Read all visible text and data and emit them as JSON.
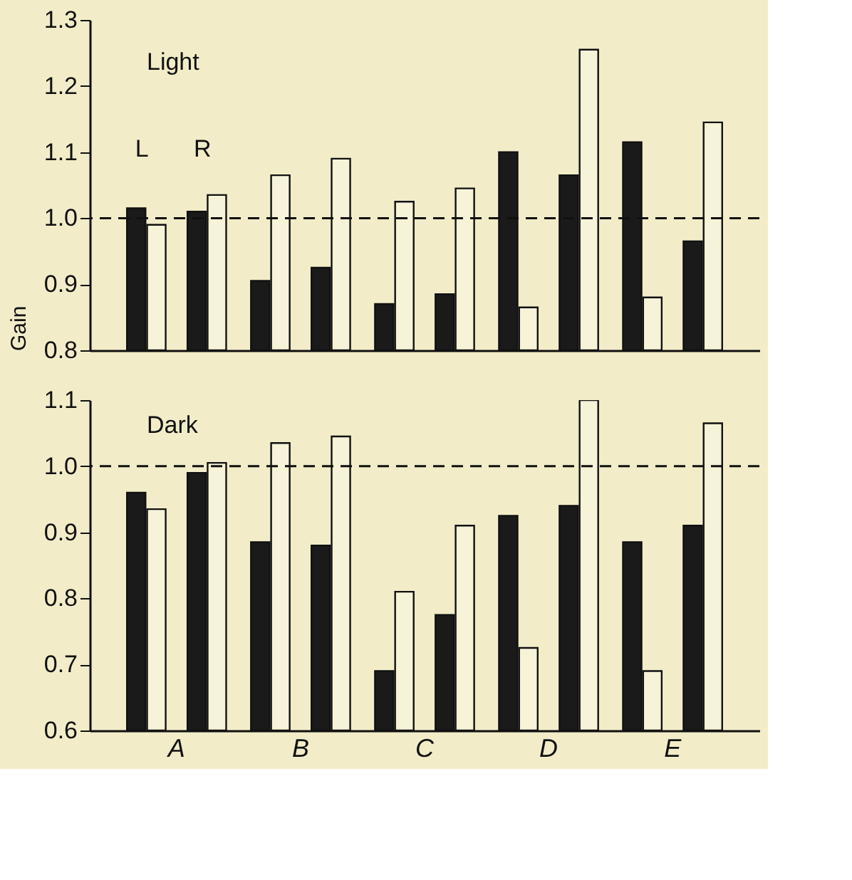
{
  "chart_data": [
    {
      "type": "bar",
      "title": "Light",
      "ylabel": "Gain",
      "categories": [
        null,
        null,
        null,
        null,
        null
      ],
      "series": [
        {
          "color": "#1a1a1a",
          "values": [
            1.015,
            0.905,
            0.87,
            1.1,
            1.115
          ]
        },
        {
          "color": "#f7f3d8",
          "values": [
            0.99,
            1.065,
            1.025,
            0.865,
            0.88
          ]
        },
        {
          "color": "#1a1a1a",
          "values": [
            1.01,
            0.925,
            0.885,
            1.065,
            0.965
          ]
        },
        {
          "color": "#f7f3d8",
          "values": [
            1.035,
            1.09,
            1.045,
            1.255,
            1.145
          ]
        }
      ],
      "ylim": [
        0.8,
        1.3
      ],
      "yticks": [
        0.8,
        0.9,
        {
          "value": 1,
          "label": "1.0"
        },
        1.1,
        1.2,
        1.3
      ],
      "ref_lines": [
        {
          "axis": "y",
          "value": 1.0,
          "line_style": "dashed"
        }
      ],
      "annotations": [
        "L",
        "R"
      ],
      "tick_labels": "y",
      "grid": false,
      "legend": false
    },
    {
      "type": "bar",
      "title": "Dark",
      "categories": [
        "A",
        "B",
        "C",
        "D",
        "E"
      ],
      "series": [
        {
          "color": "#1a1a1a",
          "values": [
            0.96,
            0.885,
            0.69,
            0.925,
            0.885
          ]
        },
        {
          "color": "#f7f3d8",
          "values": [
            0.935,
            1.035,
            0.81,
            0.725,
            0.69
          ]
        },
        {
          "color": "#1a1a1a",
          "values": [
            0.99,
            0.88,
            0.775,
            0.94,
            0.91
          ]
        },
        {
          "color": "#f7f3d8",
          "values": [
            1.005,
            1.045,
            0.91,
            1.1,
            1.065
          ]
        }
      ],
      "ylim": [
        0.6,
        1.1
      ],
      "yticks": [
        0.6,
        0.7,
        0.8,
        0.9,
        {
          "value": 1,
          "label": "1.0"
        },
        1.1
      ],
      "ref_lines": [
        {
          "axis": "y",
          "value": 1.0,
          "line_style": "dashed"
        }
      ],
      "grid": false,
      "legend": false
    }
  ]
}
